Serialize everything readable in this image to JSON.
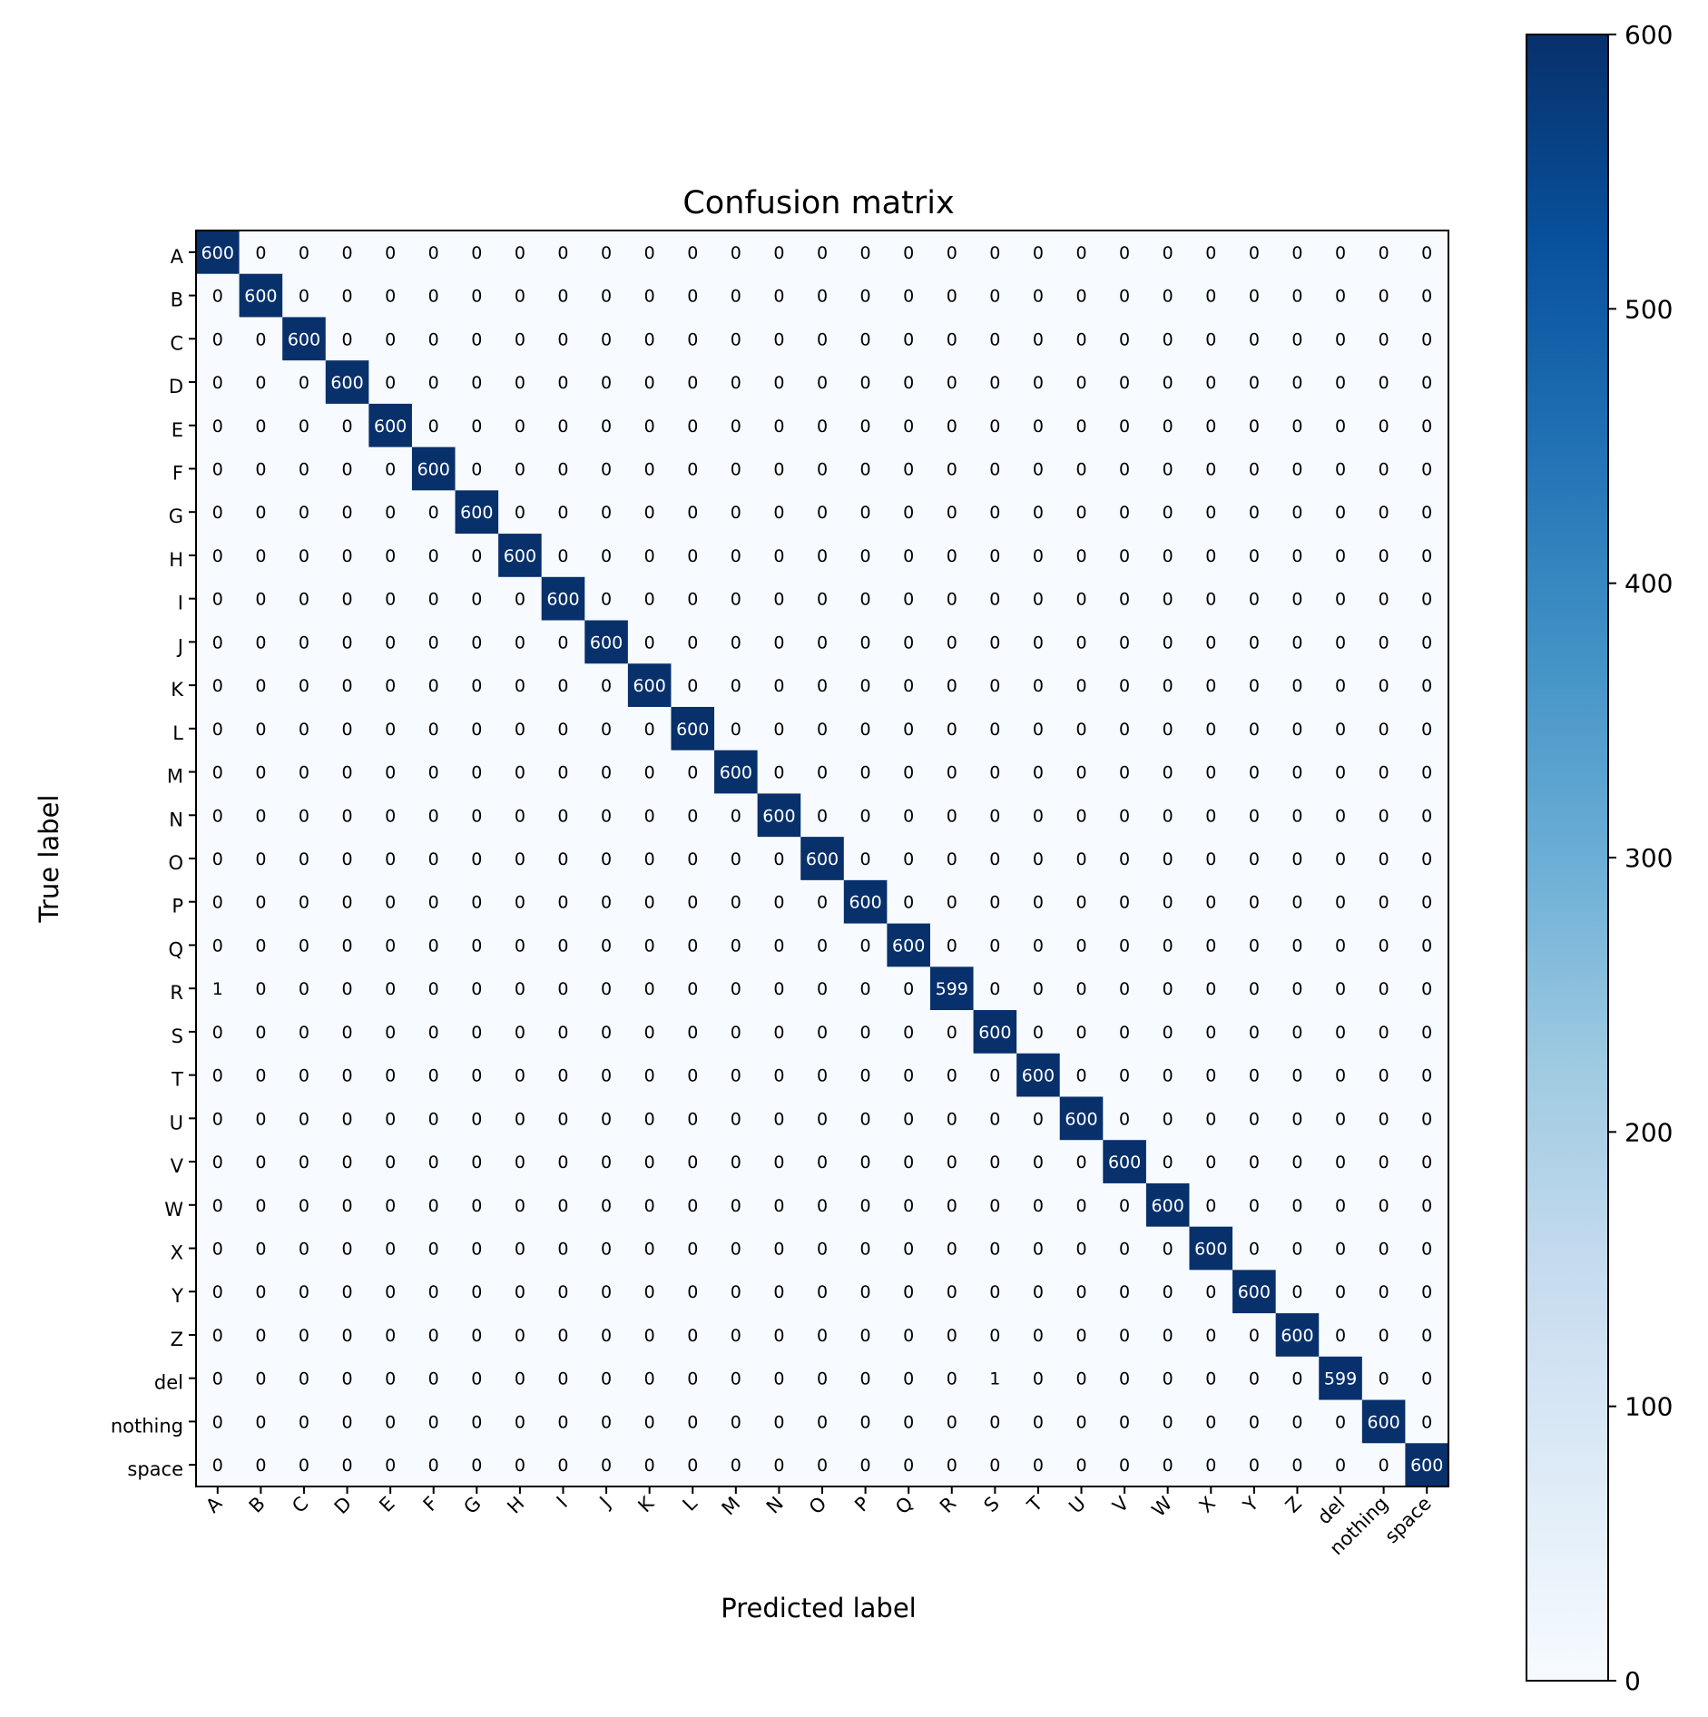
{
  "chart_data": {
    "type": "heatmap",
    "title": "Confusion matrix",
    "xlabel": "Predicted label",
    "ylabel": "True label",
    "x_categories": [
      "A",
      "B",
      "C",
      "D",
      "E",
      "F",
      "G",
      "H",
      "I",
      "J",
      "K",
      "L",
      "M",
      "N",
      "O",
      "P",
      "Q",
      "R",
      "S",
      "T",
      "U",
      "V",
      "W",
      "X",
      "Y",
      "Z",
      "del",
      "nothing",
      "space"
    ],
    "y_categories": [
      "A",
      "B",
      "C",
      "D",
      "E",
      "F",
      "G",
      "H",
      "I",
      "J",
      "K",
      "L",
      "M",
      "N",
      "O",
      "P",
      "Q",
      "R",
      "S",
      "T",
      "U",
      "V",
      "W",
      "X",
      "Y",
      "Z",
      "del",
      "nothing",
      "space"
    ],
    "matrix": [
      [
        600,
        0,
        0,
        0,
        0,
        0,
        0,
        0,
        0,
        0,
        0,
        0,
        0,
        0,
        0,
        0,
        0,
        0,
        0,
        0,
        0,
        0,
        0,
        0,
        0,
        0,
        0,
        0,
        0
      ],
      [
        0,
        600,
        0,
        0,
        0,
        0,
        0,
        0,
        0,
        0,
        0,
        0,
        0,
        0,
        0,
        0,
        0,
        0,
        0,
        0,
        0,
        0,
        0,
        0,
        0,
        0,
        0,
        0,
        0
      ],
      [
        0,
        0,
        600,
        0,
        0,
        0,
        0,
        0,
        0,
        0,
        0,
        0,
        0,
        0,
        0,
        0,
        0,
        0,
        0,
        0,
        0,
        0,
        0,
        0,
        0,
        0,
        0,
        0,
        0
      ],
      [
        0,
        0,
        0,
        600,
        0,
        0,
        0,
        0,
        0,
        0,
        0,
        0,
        0,
        0,
        0,
        0,
        0,
        0,
        0,
        0,
        0,
        0,
        0,
        0,
        0,
        0,
        0,
        0,
        0
      ],
      [
        0,
        0,
        0,
        0,
        600,
        0,
        0,
        0,
        0,
        0,
        0,
        0,
        0,
        0,
        0,
        0,
        0,
        0,
        0,
        0,
        0,
        0,
        0,
        0,
        0,
        0,
        0,
        0,
        0
      ],
      [
        0,
        0,
        0,
        0,
        0,
        600,
        0,
        0,
        0,
        0,
        0,
        0,
        0,
        0,
        0,
        0,
        0,
        0,
        0,
        0,
        0,
        0,
        0,
        0,
        0,
        0,
        0,
        0,
        0
      ],
      [
        0,
        0,
        0,
        0,
        0,
        0,
        600,
        0,
        0,
        0,
        0,
        0,
        0,
        0,
        0,
        0,
        0,
        0,
        0,
        0,
        0,
        0,
        0,
        0,
        0,
        0,
        0,
        0,
        0
      ],
      [
        0,
        0,
        0,
        0,
        0,
        0,
        0,
        600,
        0,
        0,
        0,
        0,
        0,
        0,
        0,
        0,
        0,
        0,
        0,
        0,
        0,
        0,
        0,
        0,
        0,
        0,
        0,
        0,
        0
      ],
      [
        0,
        0,
        0,
        0,
        0,
        0,
        0,
        0,
        600,
        0,
        0,
        0,
        0,
        0,
        0,
        0,
        0,
        0,
        0,
        0,
        0,
        0,
        0,
        0,
        0,
        0,
        0,
        0,
        0
      ],
      [
        0,
        0,
        0,
        0,
        0,
        0,
        0,
        0,
        0,
        600,
        0,
        0,
        0,
        0,
        0,
        0,
        0,
        0,
        0,
        0,
        0,
        0,
        0,
        0,
        0,
        0,
        0,
        0,
        0
      ],
      [
        0,
        0,
        0,
        0,
        0,
        0,
        0,
        0,
        0,
        0,
        600,
        0,
        0,
        0,
        0,
        0,
        0,
        0,
        0,
        0,
        0,
        0,
        0,
        0,
        0,
        0,
        0,
        0,
        0
      ],
      [
        0,
        0,
        0,
        0,
        0,
        0,
        0,
        0,
        0,
        0,
        0,
        600,
        0,
        0,
        0,
        0,
        0,
        0,
        0,
        0,
        0,
        0,
        0,
        0,
        0,
        0,
        0,
        0,
        0
      ],
      [
        0,
        0,
        0,
        0,
        0,
        0,
        0,
        0,
        0,
        0,
        0,
        0,
        600,
        0,
        0,
        0,
        0,
        0,
        0,
        0,
        0,
        0,
        0,
        0,
        0,
        0,
        0,
        0,
        0
      ],
      [
        0,
        0,
        0,
        0,
        0,
        0,
        0,
        0,
        0,
        0,
        0,
        0,
        0,
        600,
        0,
        0,
        0,
        0,
        0,
        0,
        0,
        0,
        0,
        0,
        0,
        0,
        0,
        0,
        0
      ],
      [
        0,
        0,
        0,
        0,
        0,
        0,
        0,
        0,
        0,
        0,
        0,
        0,
        0,
        0,
        600,
        0,
        0,
        0,
        0,
        0,
        0,
        0,
        0,
        0,
        0,
        0,
        0,
        0,
        0
      ],
      [
        0,
        0,
        0,
        0,
        0,
        0,
        0,
        0,
        0,
        0,
        0,
        0,
        0,
        0,
        0,
        600,
        0,
        0,
        0,
        0,
        0,
        0,
        0,
        0,
        0,
        0,
        0,
        0,
        0
      ],
      [
        0,
        0,
        0,
        0,
        0,
        0,
        0,
        0,
        0,
        0,
        0,
        0,
        0,
        0,
        0,
        0,
        600,
        0,
        0,
        0,
        0,
        0,
        0,
        0,
        0,
        0,
        0,
        0,
        0
      ],
      [
        1,
        0,
        0,
        0,
        0,
        0,
        0,
        0,
        0,
        0,
        0,
        0,
        0,
        0,
        0,
        0,
        0,
        599,
        0,
        0,
        0,
        0,
        0,
        0,
        0,
        0,
        0,
        0,
        0
      ],
      [
        0,
        0,
        0,
        0,
        0,
        0,
        0,
        0,
        0,
        0,
        0,
        0,
        0,
        0,
        0,
        0,
        0,
        0,
        600,
        0,
        0,
        0,
        0,
        0,
        0,
        0,
        0,
        0,
        0
      ],
      [
        0,
        0,
        0,
        0,
        0,
        0,
        0,
        0,
        0,
        0,
        0,
        0,
        0,
        0,
        0,
        0,
        0,
        0,
        0,
        600,
        0,
        0,
        0,
        0,
        0,
        0,
        0,
        0,
        0
      ],
      [
        0,
        0,
        0,
        0,
        0,
        0,
        0,
        0,
        0,
        0,
        0,
        0,
        0,
        0,
        0,
        0,
        0,
        0,
        0,
        0,
        600,
        0,
        0,
        0,
        0,
        0,
        0,
        0,
        0
      ],
      [
        0,
        0,
        0,
        0,
        0,
        0,
        0,
        0,
        0,
        0,
        0,
        0,
        0,
        0,
        0,
        0,
        0,
        0,
        0,
        0,
        0,
        600,
        0,
        0,
        0,
        0,
        0,
        0,
        0
      ],
      [
        0,
        0,
        0,
        0,
        0,
        0,
        0,
        0,
        0,
        0,
        0,
        0,
        0,
        0,
        0,
        0,
        0,
        0,
        0,
        0,
        0,
        0,
        600,
        0,
        0,
        0,
        0,
        0,
        0
      ],
      [
        0,
        0,
        0,
        0,
        0,
        0,
        0,
        0,
        0,
        0,
        0,
        0,
        0,
        0,
        0,
        0,
        0,
        0,
        0,
        0,
        0,
        0,
        0,
        600,
        0,
        0,
        0,
        0,
        0
      ],
      [
        0,
        0,
        0,
        0,
        0,
        0,
        0,
        0,
        0,
        0,
        0,
        0,
        0,
        0,
        0,
        0,
        0,
        0,
        0,
        0,
        0,
        0,
        0,
        0,
        600,
        0,
        0,
        0,
        0
      ],
      [
        0,
        0,
        0,
        0,
        0,
        0,
        0,
        0,
        0,
        0,
        0,
        0,
        0,
        0,
        0,
        0,
        0,
        0,
        0,
        0,
        0,
        0,
        0,
        0,
        0,
        600,
        0,
        0,
        0
      ],
      [
        0,
        0,
        0,
        0,
        0,
        0,
        0,
        0,
        0,
        0,
        0,
        0,
        0,
        0,
        0,
        0,
        0,
        0,
        1,
        0,
        0,
        0,
        0,
        0,
        0,
        0,
        599,
        0,
        0
      ],
      [
        0,
        0,
        0,
        0,
        0,
        0,
        0,
        0,
        0,
        0,
        0,
        0,
        0,
        0,
        0,
        0,
        0,
        0,
        0,
        0,
        0,
        0,
        0,
        0,
        0,
        0,
        0,
        600,
        0
      ],
      [
        0,
        0,
        0,
        0,
        0,
        0,
        0,
        0,
        0,
        0,
        0,
        0,
        0,
        0,
        0,
        0,
        0,
        0,
        0,
        0,
        0,
        0,
        0,
        0,
        0,
        0,
        0,
        0,
        600
      ]
    ],
    "colormap": "Blues",
    "colormap_stops": [
      "#f7fbff",
      "#deebf7",
      "#c6dbef",
      "#9ecae1",
      "#6baed6",
      "#4292c6",
      "#2171b5",
      "#08519c",
      "#08306b"
    ],
    "colorbar": {
      "range": [
        0,
        600
      ],
      "ticks": [
        0,
        100,
        200,
        300,
        400,
        500,
        600
      ]
    }
  }
}
